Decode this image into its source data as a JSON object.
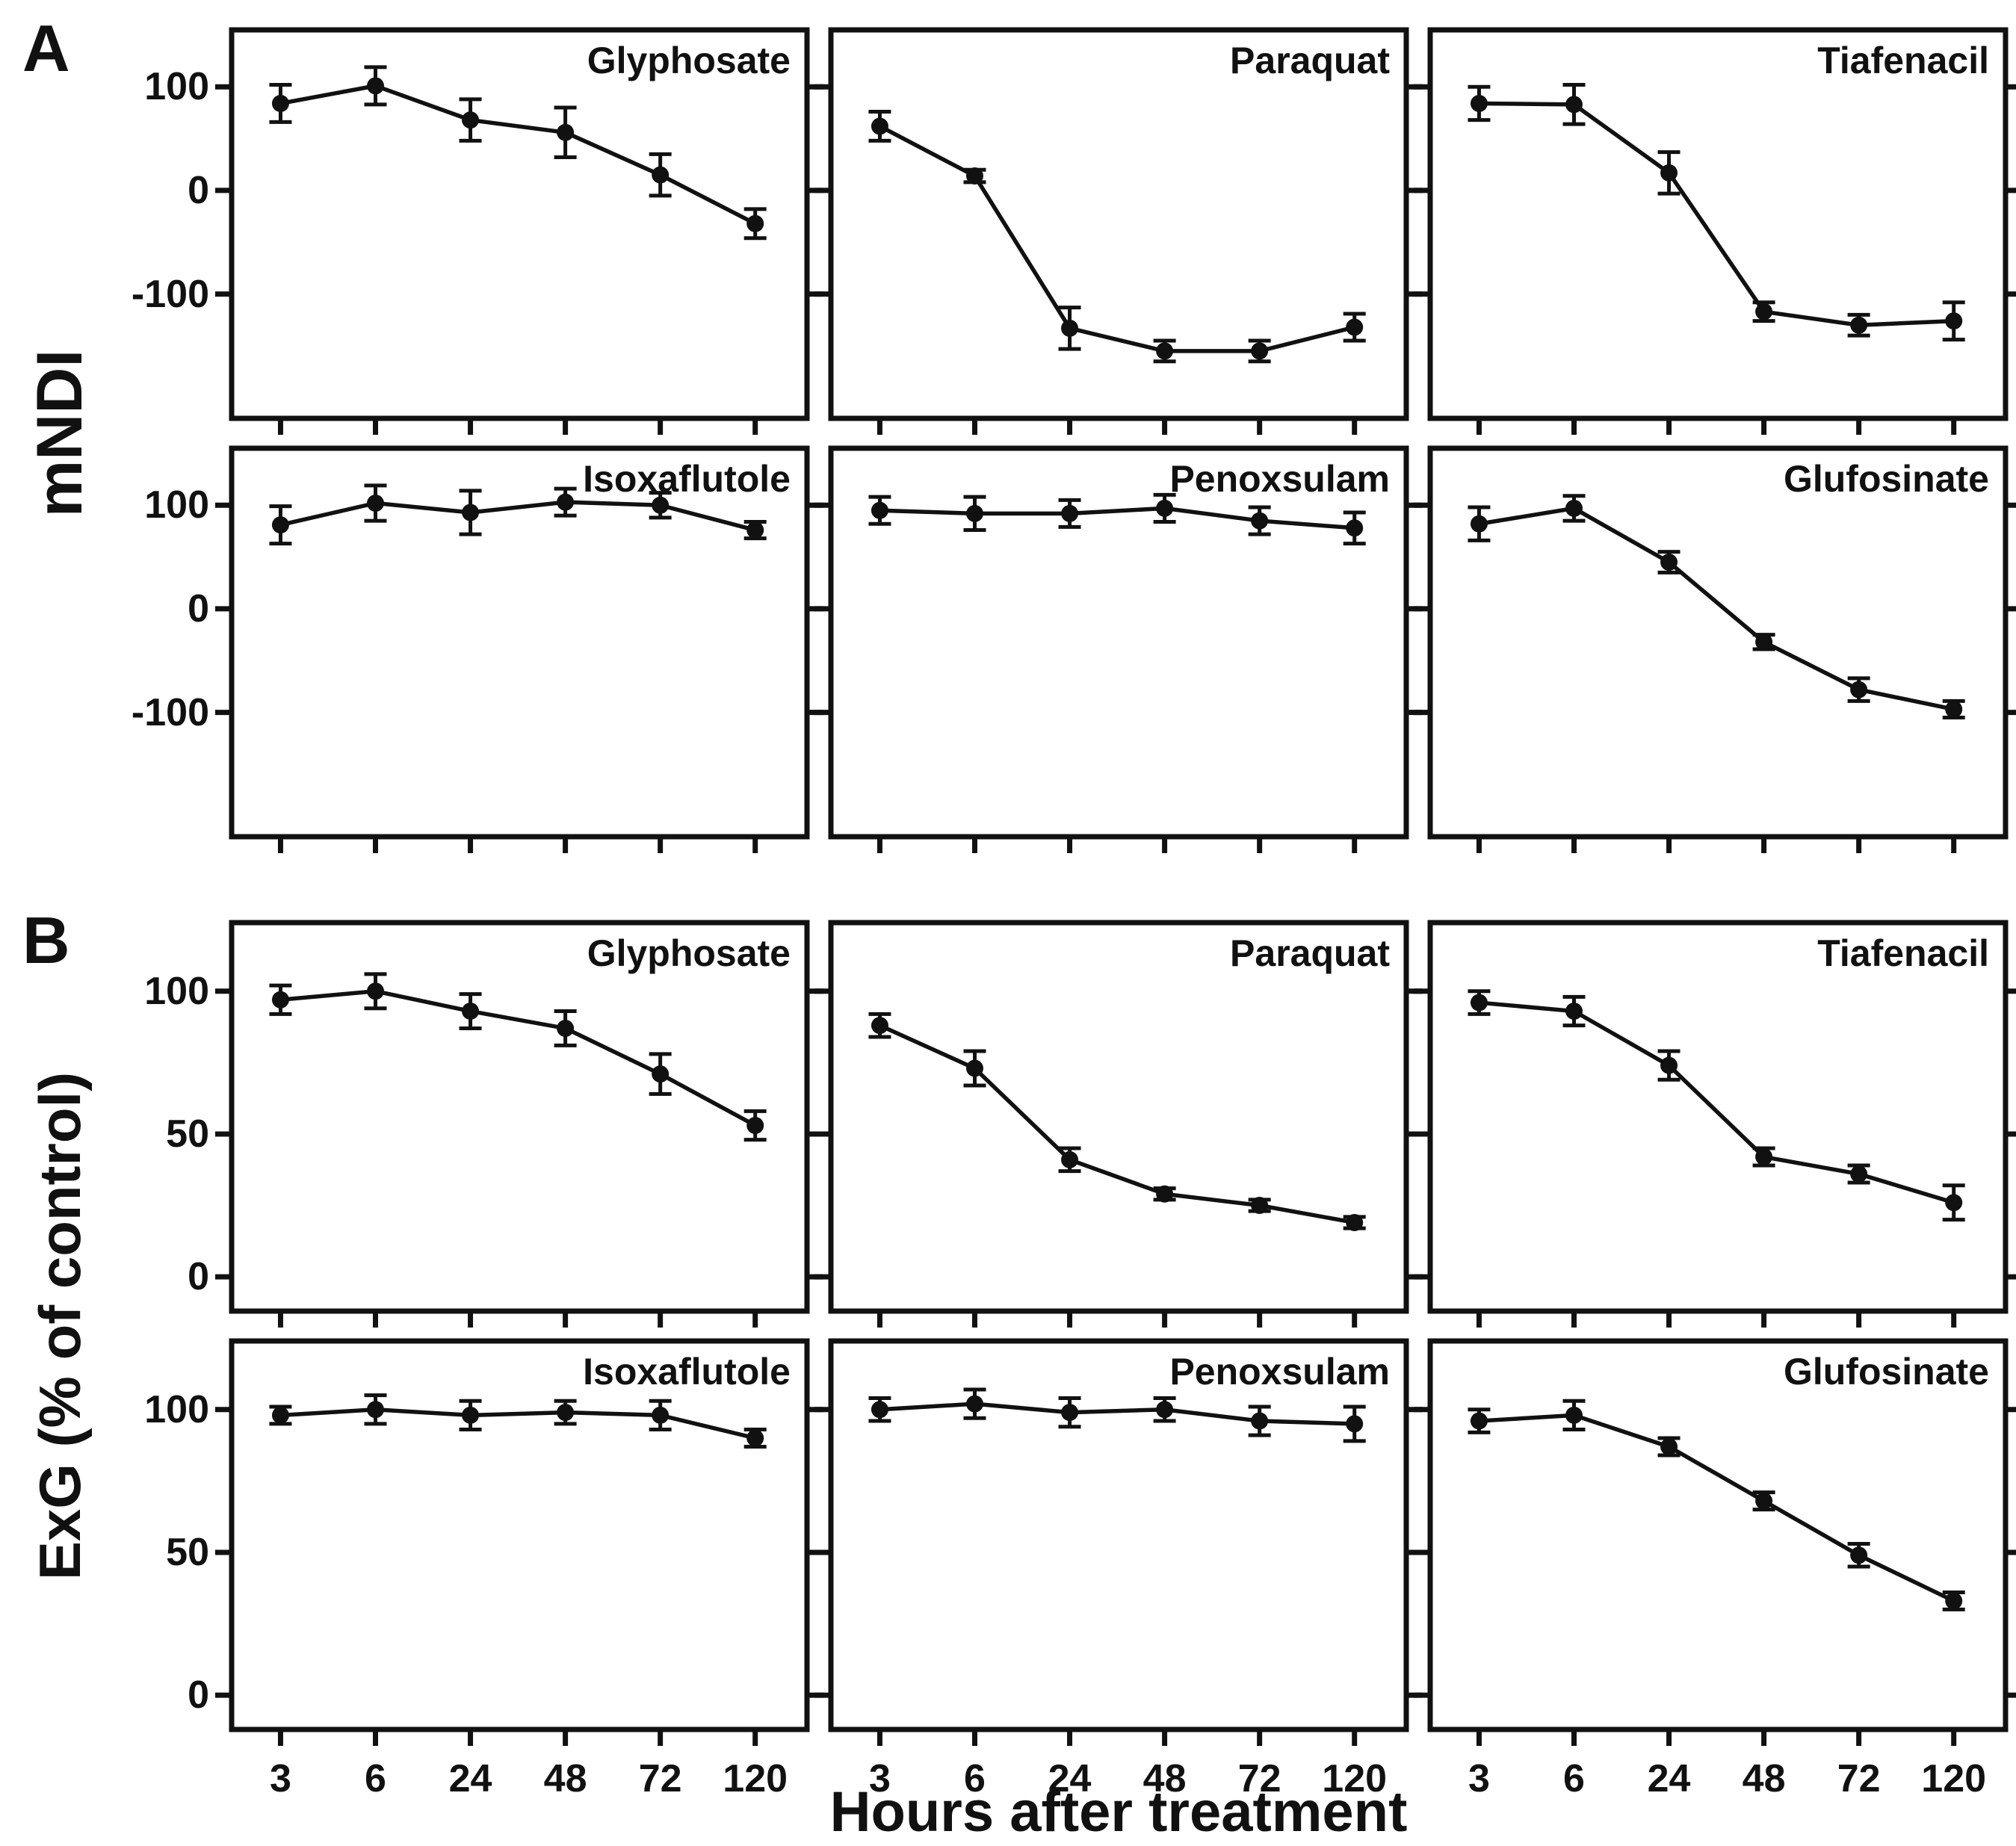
{
  "figure": {
    "section_a_label": "A",
    "section_b_label": "B",
    "y_axis_label_a": "mNDI",
    "y_axis_label_b": "ExG (% of control)",
    "x_axis_title": "Hours after treatment",
    "ink_color": "#111111",
    "background_color": "#ffffff"
  },
  "axes": {
    "x_categories": [
      "3",
      "6",
      "24",
      "48",
      "72",
      "120"
    ],
    "section_a": {
      "yticks": [
        100,
        0,
        -100
      ],
      "ylim": [
        -220,
        155
      ],
      "ylabel": "mNDI"
    },
    "section_b": {
      "yticks": [
        100,
        50,
        0
      ],
      "ylim": [
        -12,
        124
      ],
      "ylabel": "ExG (% of control)"
    }
  },
  "chart_data": [
    {
      "type": "line",
      "section": "A",
      "grid_row": 0,
      "grid_col": 0,
      "title": "Glyphosate",
      "x": [
        "3",
        "6",
        "24",
        "48",
        "72",
        "120"
      ],
      "values": [
        84,
        101,
        68,
        56,
        15,
        -32
      ],
      "errors": [
        18,
        18,
        20,
        24,
        20,
        14
      ]
    },
    {
      "type": "line",
      "section": "A",
      "grid_row": 0,
      "grid_col": 1,
      "title": "Paraquat",
      "x": [
        "3",
        "6",
        "24",
        "48",
        "72",
        "120"
      ],
      "values": [
        62,
        14,
        -133,
        -155,
        -155,
        -132
      ],
      "errors": [
        14,
        6,
        20,
        10,
        10,
        13
      ]
    },
    {
      "type": "line",
      "section": "A",
      "grid_row": 0,
      "grid_col": 2,
      "title": "Tiafenacil",
      "x": [
        "3",
        "6",
        "24",
        "48",
        "72",
        "120"
      ],
      "values": [
        84,
        83,
        17,
        -117,
        -130,
        -126
      ],
      "errors": [
        16,
        19,
        20,
        9,
        10,
        18
      ]
    },
    {
      "type": "line",
      "section": "A",
      "grid_row": 1,
      "grid_col": 0,
      "title": "Isoxaflutole",
      "x": [
        "3",
        "6",
        "24",
        "48",
        "72",
        "120"
      ],
      "values": [
        81,
        102,
        93,
        103,
        100,
        76
      ],
      "errors": [
        18,
        17,
        21,
        13,
        12,
        8
      ]
    },
    {
      "type": "line",
      "section": "A",
      "grid_row": 1,
      "grid_col": 1,
      "title": "Penoxsulam",
      "x": [
        "3",
        "6",
        "24",
        "48",
        "72",
        "120"
      ],
      "values": [
        95,
        92,
        92,
        97,
        85,
        78
      ],
      "errors": [
        13,
        16,
        13,
        13,
        13,
        15
      ]
    },
    {
      "type": "line",
      "section": "A",
      "grid_row": 1,
      "grid_col": 2,
      "title": "Glufosinate",
      "x": [
        "3",
        "6",
        "24",
        "48",
        "72",
        "120"
      ],
      "values": [
        82,
        97,
        45,
        -32,
        -78,
        -97
      ],
      "errors": [
        16,
        12,
        10,
        7,
        11,
        8
      ]
    },
    {
      "type": "line",
      "section": "B",
      "grid_row": 2,
      "grid_col": 0,
      "title": "Glyphosate",
      "x": [
        "3",
        "6",
        "24",
        "48",
        "72",
        "120"
      ],
      "values": [
        97,
        100,
        93,
        87,
        71,
        53
      ],
      "errors": [
        5,
        6,
        6,
        6,
        7,
        5
      ]
    },
    {
      "type": "line",
      "section": "B",
      "grid_row": 2,
      "grid_col": 1,
      "title": "Paraquat",
      "x": [
        "3",
        "6",
        "24",
        "48",
        "72",
        "120"
      ],
      "values": [
        88,
        73,
        41,
        29,
        25,
        19
      ],
      "errors": [
        4,
        6,
        4,
        2,
        2,
        2
      ]
    },
    {
      "type": "line",
      "section": "B",
      "grid_row": 2,
      "grid_col": 2,
      "title": "Tiafenacil",
      "x": [
        "3",
        "6",
        "24",
        "48",
        "72",
        "120"
      ],
      "values": [
        96,
        93,
        74,
        42,
        36,
        26
      ],
      "errors": [
        4,
        5,
        5,
        3,
        3,
        6
      ]
    },
    {
      "type": "line",
      "section": "B",
      "grid_row": 3,
      "grid_col": 0,
      "title": "Isoxaflutole",
      "x": [
        "3",
        "6",
        "24",
        "48",
        "72",
        "120"
      ],
      "values": [
        98,
        100,
        98,
        99,
        98,
        90
      ],
      "errors": [
        3,
        5,
        5,
        4,
        5,
        3
      ]
    },
    {
      "type": "line",
      "section": "B",
      "grid_row": 3,
      "grid_col": 1,
      "title": "Penoxsulam",
      "x": [
        "3",
        "6",
        "24",
        "48",
        "72",
        "120"
      ],
      "values": [
        100,
        102,
        99,
        100,
        96,
        95
      ],
      "errors": [
        4,
        5,
        5,
        4,
        5,
        6
      ]
    },
    {
      "type": "line",
      "section": "B",
      "grid_row": 3,
      "grid_col": 2,
      "title": "Glufosinate",
      "x": [
        "3",
        "6",
        "24",
        "48",
        "72",
        "120"
      ],
      "values": [
        96,
        98,
        87,
        68,
        49,
        33
      ],
      "errors": [
        4,
        5,
        3,
        3,
        4,
        3
      ]
    }
  ]
}
